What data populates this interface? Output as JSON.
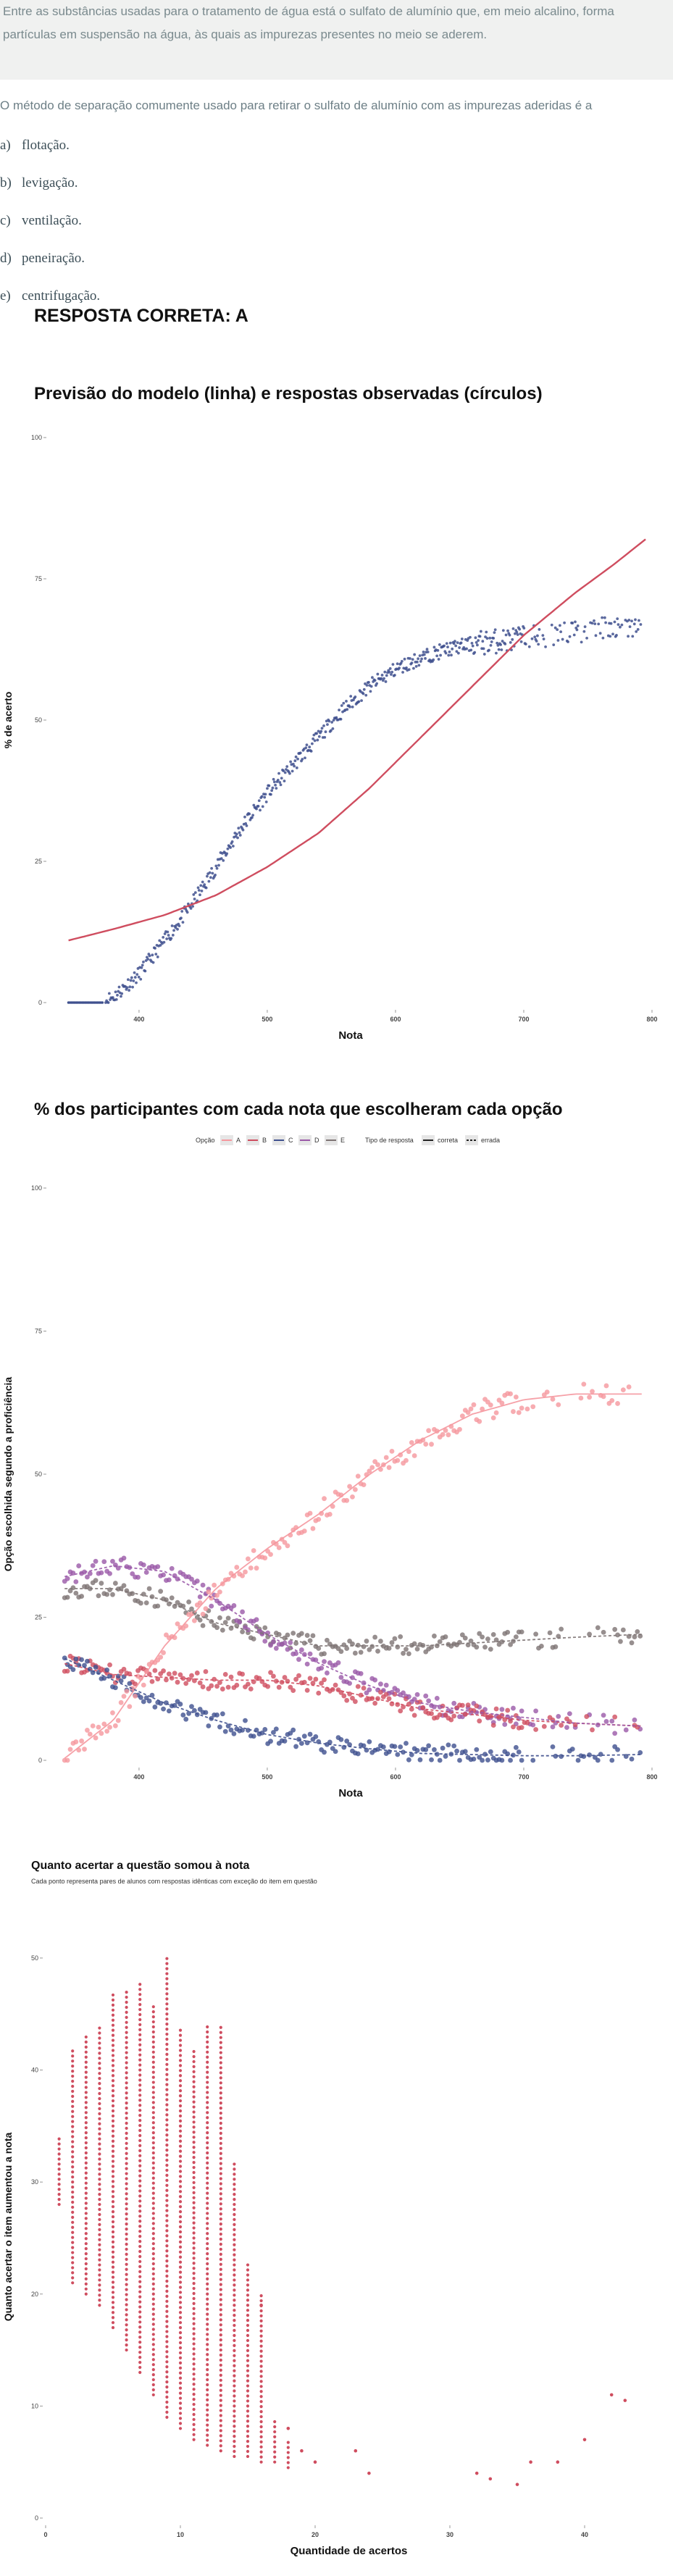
{
  "question": {
    "context": "Entre as substâncias usadas para o tratamento de água está o sulfato de alumínio que, em meio alcalino, forma partículas em suspensão na água, às quais as impurezas presentes no meio se aderem.",
    "stem": "O método de separação comumente usado para retirar o sulfato de alumínio com as impurezas aderidas é a",
    "options": [
      {
        "letter": "a)",
        "text": "flotação."
      },
      {
        "letter": "b)",
        "text": "levigação."
      },
      {
        "letter": "c)",
        "text": "ventilação."
      },
      {
        "letter": "d)",
        "text": "peneiração."
      },
      {
        "letter": "e)",
        "text": "centrifugação."
      }
    ],
    "answer": "RESPOSTA CORRETA: A"
  },
  "colors": {
    "red": "#cf4d5f",
    "blue": "#3f508e",
    "pink": "#f5979e",
    "purple": "#9a59a8",
    "gray": "#7d7373"
  },
  "chart_data": [
    {
      "type": "scatter",
      "title": "Previsão do modelo (linha) e respostas observadas (círculos)",
      "xlabel": "Nota",
      "ylabel": "% de acerto",
      "xlim": [
        330,
        800
      ],
      "ylim": [
        0,
        100
      ],
      "xticks": [
        "400",
        "500",
        "600",
        "700",
        "800"
      ],
      "yticks": [
        "0",
        "25",
        "50",
        "75",
        "100"
      ],
      "grid": false,
      "series": [
        {
          "kind": "line",
          "color": "#cf4d5f",
          "x": [
            345,
            380,
            420,
            460,
            500,
            540,
            580,
            620,
            660,
            700,
            740,
            770,
            795
          ],
          "y": [
            11,
            13,
            15.5,
            19,
            24,
            30,
            38,
            47,
            56,
            65,
            72.5,
            77.5,
            82
          ]
        },
        {
          "kind": "points",
          "color": "#3f508e",
          "x": [
            345,
            370,
            380,
            390,
            400,
            410,
            420,
            440,
            460,
            480,
            500,
            520,
            540,
            560,
            580,
            600,
            620,
            640,
            660,
            680,
            700,
            720,
            740,
            760,
            790
          ],
          "y": [
            0,
            0,
            1,
            3,
            5,
            8,
            11,
            17,
            24,
            31,
            37,
            42,
            47,
            52,
            56,
            59,
            61,
            62.5,
            63.5,
            64,
            64.5,
            65,
            65.5,
            66,
            67
          ]
        }
      ]
    },
    {
      "type": "scatter",
      "title": "% dos participantes com cada nota que escolheram cada opção",
      "xlabel": "Nota",
      "ylabel": "Opção escolhida segundo a proficiência",
      "xlim": [
        330,
        800
      ],
      "ylim": [
        0,
        100
      ],
      "xticks": [
        "400",
        "500",
        "600",
        "700",
        "800"
      ],
      "yticks": [
        "0",
        "25",
        "50",
        "75",
        "100"
      ],
      "legend": {
        "position": "top",
        "option_title": "Opção",
        "options": [
          "A",
          "B",
          "C",
          "D",
          "E"
        ],
        "type_title": "Tipo de resposta",
        "types": [
          "correta",
          "errada"
        ]
      },
      "series": [
        {
          "name": "A",
          "color": "#f5979e",
          "x": [
            340,
            380,
            420,
            460,
            500,
            540,
            580,
            620,
            660,
            700,
            740,
            790
          ],
          "y": [
            0,
            7,
            20,
            30,
            37,
            43,
            50,
            56,
            60.5,
            63,
            64,
            64
          ]
        },
        {
          "name": "B",
          "color": "#cf4d5f",
          "x": [
            340,
            380,
            420,
            460,
            500,
            540,
            580,
            620,
            660,
            700,
            740,
            790
          ],
          "y": [
            17,
            15,
            14.5,
            14,
            14,
            13,
            11,
            9,
            8,
            7,
            6.5,
            6
          ]
        },
        {
          "name": "C",
          "color": "#3f508e",
          "x": [
            340,
            380,
            420,
            460,
            500,
            540,
            580,
            620,
            660,
            700,
            740,
            790
          ],
          "y": [
            18,
            14,
            10,
            7,
            4.5,
            3,
            2,
            1.2,
            1,
            0.8,
            0.8,
            1
          ]
        },
        {
          "name": "D",
          "color": "#9a59a8",
          "x": [
            340,
            380,
            420,
            460,
            500,
            540,
            580,
            620,
            660,
            700,
            740,
            790
          ],
          "y": [
            32,
            34,
            33,
            28,
            22,
            17,
            13,
            10,
            8.5,
            7.5,
            6.5,
            6
          ]
        },
        {
          "name": "E",
          "color": "#7d7373",
          "x": [
            340,
            380,
            420,
            460,
            500,
            540,
            580,
            620,
            660,
            700,
            740,
            790
          ],
          "y": [
            30,
            30,
            28,
            24,
            22,
            20,
            20,
            20,
            20.5,
            21,
            21.5,
            22
          ]
        }
      ]
    },
    {
      "type": "scatter",
      "title": "Quanto acertar a questão somou à nota",
      "subtitle": "Cada ponto representa pares de alunos com respostas idênticas com exceção do item em questão",
      "xlabel": "Quantidade de acertos",
      "ylabel": "Quanto acertar o item aumentou a nota",
      "xlim": [
        0,
        45
      ],
      "ylim": [
        0,
        52
      ],
      "xticks": [
        "0",
        "10",
        "20",
        "30",
        "40"
      ],
      "yticks": [
        "0",
        "10",
        "20",
        "30",
        "40",
        "50"
      ],
      "color": "#cf4d5f",
      "columns": [
        {
          "x": 1,
          "ymin": 28,
          "ymax": 34
        },
        {
          "x": 2,
          "ymin": 21,
          "ymax": 42
        },
        {
          "x": 3,
          "ymin": 20,
          "ymax": 43
        },
        {
          "x": 4,
          "ymin": 19,
          "ymax": 44
        },
        {
          "x": 5,
          "ymin": 17,
          "ymax": 47
        },
        {
          "x": 6,
          "ymin": 15,
          "ymax": 47
        },
        {
          "x": 7,
          "ymin": 13,
          "ymax": 48
        },
        {
          "x": 8,
          "ymin": 11,
          "ymax": 46
        },
        {
          "x": 9,
          "ymin": 9,
          "ymax": 50
        },
        {
          "x": 10,
          "ymin": 8,
          "ymax": 44
        },
        {
          "x": 11,
          "ymin": 7,
          "ymax": 42
        },
        {
          "x": 12,
          "ymin": 6.5,
          "ymax": 44
        },
        {
          "x": 13,
          "ymin": 6,
          "ymax": 44
        },
        {
          "x": 14,
          "ymin": 5.5,
          "ymax": 32
        },
        {
          "x": 15,
          "ymin": 5.5,
          "ymax": 23
        },
        {
          "x": 16,
          "ymin": 5,
          "ymax": 20
        },
        {
          "x": 17,
          "ymin": 5,
          "ymax": 9
        },
        {
          "x": 18,
          "ymin": 4.5,
          "ymax": 7
        }
      ],
      "points": [
        {
          "x": 16,
          "y": 19
        },
        {
          "x": 18,
          "y": 8
        },
        {
          "x": 19,
          "y": 6
        },
        {
          "x": 20,
          "y": 5
        },
        {
          "x": 23,
          "y": 6
        },
        {
          "x": 24,
          "y": 4
        },
        {
          "x": 32,
          "y": 4
        },
        {
          "x": 33,
          "y": 3.5
        },
        {
          "x": 35,
          "y": 3
        },
        {
          "x": 36,
          "y": 5
        },
        {
          "x": 38,
          "y": 5
        },
        {
          "x": 40,
          "y": 7
        },
        {
          "x": 42,
          "y": 11
        },
        {
          "x": 43,
          "y": 10.5
        }
      ]
    }
  ]
}
